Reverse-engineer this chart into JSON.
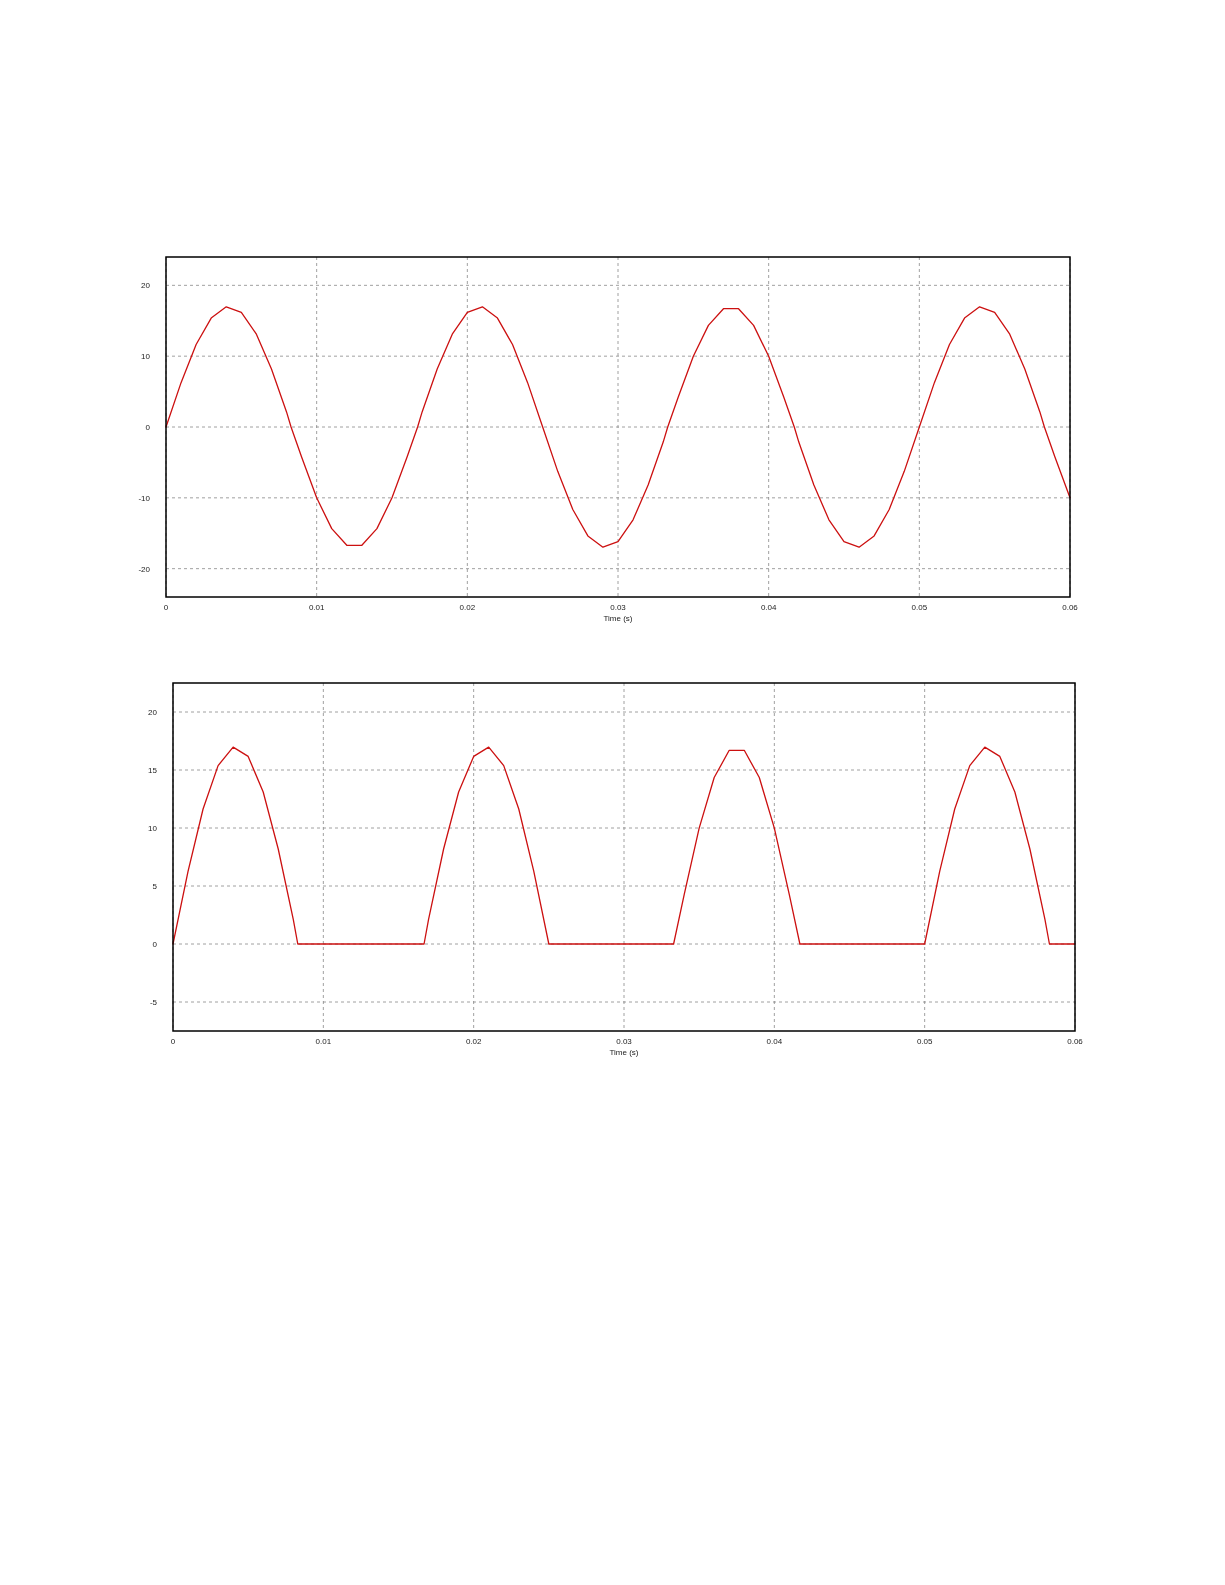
{
  "chart_data": [
    {
      "type": "line",
      "xlabel": "Time (s)",
      "xlim": [
        0,
        0.06
      ],
      "xticks": [
        0,
        0.01,
        0.02,
        0.03,
        0.04,
        0.05,
        0.06
      ],
      "ylim": [
        -24,
        24
      ],
      "yticks": [
        -20,
        -10,
        0,
        10,
        20
      ],
      "grid": true,
      "line_style": "solid",
      "x": [
        0,
        0.001,
        0.002,
        0.003,
        0.004,
        0.005,
        0.006,
        0.007,
        0.008,
        0.0083,
        0.009,
        0.01,
        0.011,
        0.012,
        0.013,
        0.014,
        0.015,
        0.016,
        0.0167,
        0.017,
        0.018,
        0.019,
        0.02,
        0.021,
        0.022,
        0.023,
        0.024,
        0.025,
        0.026,
        0.027,
        0.028,
        0.029,
        0.03,
        0.031,
        0.032,
        0.033,
        0.0333,
        0.034,
        0.035,
        0.036,
        0.037,
        0.038,
        0.039,
        0.04,
        0.041,
        0.0417,
        0.042,
        0.043,
        0.044,
        0.045,
        0.046,
        0.047,
        0.048,
        0.049,
        0.05,
        0.051,
        0.052,
        0.053,
        0.054,
        0.055,
        0.056,
        0.057,
        0.058,
        0.0583,
        0.059,
        0.06
      ],
      "series": [
        {
          "color": "#cc1010",
          "values": [
            0,
            6.26,
            11.64,
            15.38,
            16.97,
            16.17,
            13.1,
            8.19,
            2.13,
            0,
            -4.23,
            -9.99,
            -14.35,
            -16.7,
            -16.7,
            -14.35,
            -9.99,
            -4.23,
            0,
            2.13,
            8.19,
            13.1,
            16.17,
            16.97,
            15.38,
            11.64,
            6.26,
            0,
            -6.26,
            -11.64,
            -15.38,
            -16.97,
            -16.17,
            -13.1,
            -8.19,
            -2.13,
            0,
            4.23,
            9.99,
            14.35,
            16.7,
            16.7,
            14.35,
            9.99,
            4.23,
            0,
            -2.13,
            -8.19,
            -13.1,
            -16.17,
            -16.97,
            -15.38,
            -11.64,
            -6.26,
            0,
            6.26,
            11.64,
            15.38,
            16.97,
            16.17,
            13.1,
            8.19,
            2.13,
            0,
            -4.23,
            -9.99
          ]
        }
      ]
    },
    {
      "type": "line",
      "xlabel": "Time (s)",
      "xlim": [
        0,
        0.06
      ],
      "xticks": [
        0,
        0.01,
        0.02,
        0.03,
        0.04,
        0.05,
        0.06
      ],
      "ylim": [
        -7.5,
        22.5
      ],
      "yticks": [
        -5,
        0,
        5,
        10,
        15,
        20
      ],
      "grid": true,
      "line_style": "solid",
      "x": [
        0,
        0.001,
        0.002,
        0.003,
        0.004,
        0.005,
        0.006,
        0.007,
        0.008,
        0.0083,
        0.009,
        0.01,
        0.011,
        0.012,
        0.013,
        0.014,
        0.015,
        0.016,
        0.0167,
        0.017,
        0.018,
        0.019,
        0.02,
        0.021,
        0.022,
        0.023,
        0.024,
        0.025,
        0.026,
        0.027,
        0.028,
        0.029,
        0.03,
        0.031,
        0.032,
        0.033,
        0.0333,
        0.034,
        0.035,
        0.036,
        0.037,
        0.038,
        0.039,
        0.04,
        0.041,
        0.0417,
        0.042,
        0.043,
        0.044,
        0.045,
        0.046,
        0.047,
        0.048,
        0.049,
        0.05,
        0.051,
        0.052,
        0.053,
        0.054,
        0.055,
        0.056,
        0.057,
        0.058,
        0.0583,
        0.059,
        0.06
      ],
      "series": [
        {
          "color": "#cc1010",
          "values": [
            0,
            6.26,
            11.64,
            15.38,
            16.97,
            16.17,
            13.1,
            8.19,
            2.13,
            0,
            0,
            0,
            0,
            0,
            0,
            0,
            0,
            0,
            0,
            2.13,
            8.19,
            13.1,
            16.17,
            16.97,
            15.38,
            11.64,
            6.26,
            0,
            0,
            0,
            0,
            0,
            0,
            0,
            0,
            0,
            0,
            4.23,
            9.99,
            14.35,
            16.7,
            16.7,
            14.35,
            9.99,
            4.23,
            0,
            0,
            0,
            0,
            0,
            0,
            0,
            0,
            0,
            0,
            6.26,
            11.64,
            15.38,
            16.97,
            16.17,
            13.1,
            8.19,
            2.13,
            0,
            0,
            0
          ]
        }
      ]
    }
  ]
}
